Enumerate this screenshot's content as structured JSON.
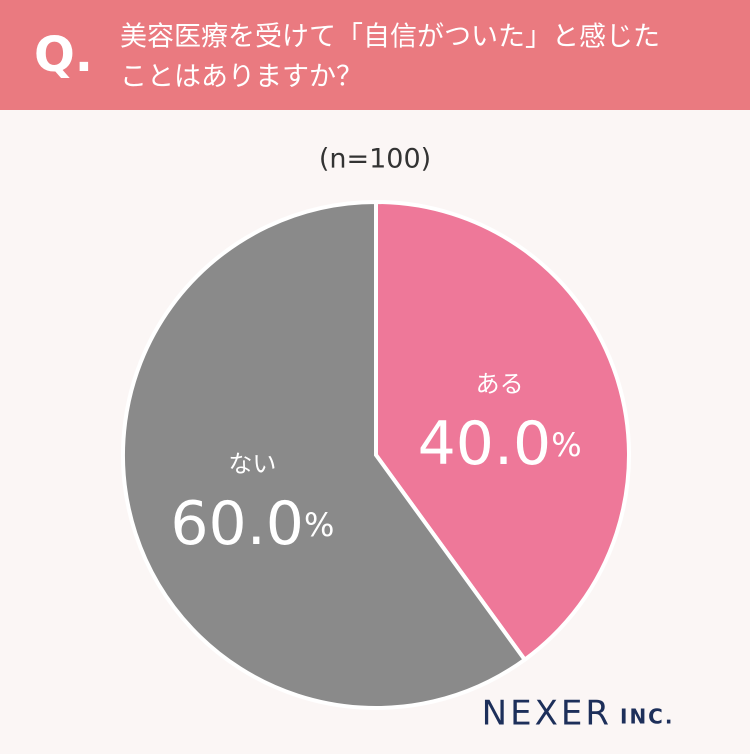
{
  "chart_data": {
    "type": "pie",
    "question_label": "Q.",
    "title": [
      "美容医療を受けて「自信がついた」と感じた",
      "ことはありますか？"
    ],
    "subtitle": "(n=100)",
    "categories": [
      "ある",
      "ない"
    ],
    "values": [
      40.0,
      60.0
    ],
    "value_labels": [
      "40.0%",
      "60.0%"
    ],
    "colors": [
      "#ee7899",
      "#8a8a8a"
    ],
    "logo": "NEXER",
    "logo_suffix": "INC."
  }
}
